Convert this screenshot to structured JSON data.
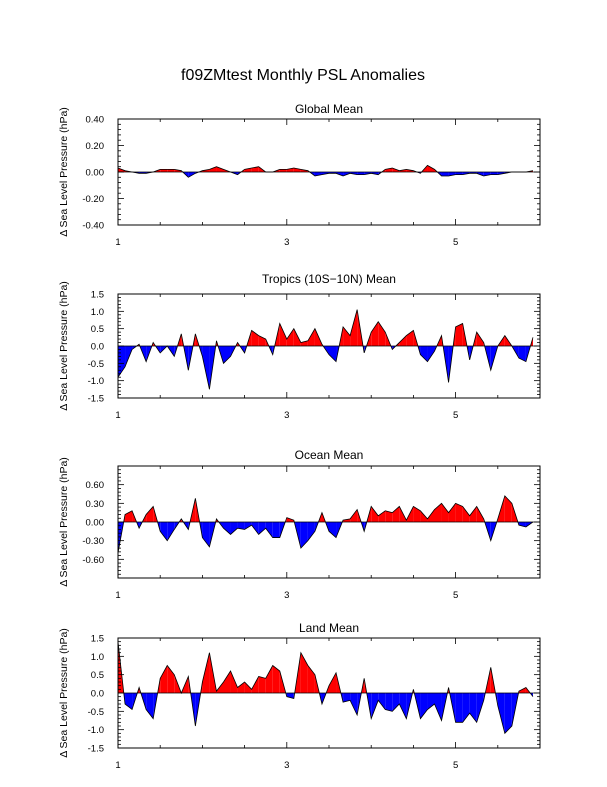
{
  "figure": {
    "title": "f09ZMtest Monthly PSL Anomalies",
    "ylabel": "Δ Sea Level Pressure (hPa)",
    "colors": {
      "positive": "#ff0000",
      "negative": "#0000ff",
      "axis": "#000000",
      "background": "#ffffff"
    }
  },
  "chart_data": [
    {
      "type": "area",
      "title": "Global Mean",
      "ylabel": "Δ Sea Level Pressure (hPa)",
      "xlim": [
        1,
        6
      ],
      "ylim": [
        -0.4,
        0.4
      ],
      "xticks": [
        1,
        3,
        5
      ],
      "yticks": [
        -0.4,
        -0.2,
        0.0,
        0.2,
        0.4
      ],
      "ytick_labels": [
        "-0.40",
        "-0.20",
        "0.00",
        "0.20",
        "0.40"
      ],
      "x_start": 1,
      "x_step": 0.083333,
      "values": [
        0.03,
        0.01,
        0.0,
        -0.01,
        -0.01,
        0.0,
        0.02,
        0.02,
        0.02,
        0.01,
        -0.04,
        -0.01,
        0.01,
        0.02,
        0.04,
        0.02,
        0.0,
        -0.02,
        0.02,
        0.03,
        0.04,
        0.0,
        0.0,
        0.02,
        0.02,
        0.03,
        0.02,
        0.01,
        -0.03,
        -0.02,
        -0.01,
        -0.01,
        -0.03,
        -0.01,
        -0.02,
        -0.02,
        -0.01,
        -0.02,
        0.02,
        0.03,
        0.01,
        0.02,
        0.01,
        -0.01,
        0.05,
        0.02,
        -0.03,
        -0.03,
        -0.02,
        -0.02,
        -0.01,
        -0.01,
        -0.03,
        -0.02,
        -0.02,
        -0.01,
        0.0,
        0.0,
        0.0,
        0.01
      ]
    },
    {
      "type": "area",
      "title": "Tropics (10S−10N) Mean",
      "ylabel": "Δ Sea Level Pressure (hPa)",
      "xlim": [
        1,
        6
      ],
      "ylim": [
        -1.5,
        1.5
      ],
      "xticks": [
        1,
        3,
        5
      ],
      "yticks": [
        -1.5,
        -1.0,
        -0.5,
        0.0,
        0.5,
        1.0,
        1.5
      ],
      "ytick_labels": [
        "-1.5",
        "-1.0",
        "-0.5",
        "0.0",
        "0.5",
        "1.0",
        "1.5"
      ],
      "x_start": 1,
      "x_step": 0.083333,
      "values": [
        -0.9,
        -0.6,
        -0.1,
        0.05,
        -0.45,
        0.1,
        -0.2,
        0.0,
        -0.3,
        0.35,
        -0.7,
        0.35,
        -0.3,
        -1.25,
        0.15,
        -0.5,
        -0.3,
        0.1,
        -0.2,
        0.45,
        0.3,
        0.2,
        -0.25,
        0.65,
        0.2,
        0.5,
        0.1,
        0.15,
        0.5,
        0.05,
        -0.25,
        -0.45,
        0.55,
        0.3,
        1.05,
        -0.2,
        0.4,
        0.7,
        0.4,
        -0.1,
        0.1,
        0.3,
        0.45,
        -0.25,
        -0.45,
        -0.15,
        0.3,
        -1.05,
        0.55,
        0.65,
        -0.4,
        0.4,
        0.1,
        -0.7,
        0.0,
        0.3,
        0.0,
        -0.35,
        -0.45,
        0.25
      ]
    },
    {
      "type": "area",
      "title": "Ocean Mean",
      "ylabel": "Δ Sea Level Pressure (hPa)",
      "xlim": [
        1,
        6
      ],
      "ylim": [
        -0.9,
        0.9
      ],
      "xticks": [
        1,
        3,
        5
      ],
      "yticks": [
        -0.6,
        -0.3,
        0.0,
        0.3,
        0.6
      ],
      "ytick_labels": [
        "-0.60",
        "-0.30",
        "0.00",
        "0.30",
        "0.60"
      ],
      "x_start": 1,
      "x_step": 0.083333,
      "values": [
        -0.5,
        0.12,
        0.18,
        -0.1,
        0.12,
        0.25,
        -0.15,
        -0.3,
        -0.12,
        0.05,
        -0.12,
        0.38,
        -0.25,
        -0.4,
        0.05,
        -0.1,
        -0.2,
        -0.1,
        -0.12,
        -0.05,
        -0.2,
        -0.1,
        -0.25,
        -0.25,
        0.07,
        0.03,
        -0.42,
        -0.3,
        -0.15,
        0.15,
        -0.15,
        -0.25,
        0.03,
        0.05,
        0.2,
        -0.15,
        0.25,
        0.1,
        0.18,
        0.15,
        0.25,
        0.03,
        0.25,
        0.18,
        0.05,
        0.2,
        0.3,
        0.15,
        0.3,
        0.25,
        0.1,
        0.25,
        0.05,
        -0.3,
        0.05,
        0.42,
        0.3,
        -0.05,
        -0.08,
        0.0
      ]
    },
    {
      "type": "area",
      "title": "Land Mean",
      "ylabel": "Δ Sea Level Pressure (hPa)",
      "xlim": [
        1,
        6
      ],
      "ylim": [
        -1.5,
        1.5
      ],
      "xticks": [
        1,
        3,
        5
      ],
      "yticks": [
        -1.5,
        -1.0,
        -0.5,
        0.0,
        0.5,
        1.0,
        1.5
      ],
      "ytick_labels": [
        "-1.5",
        "-1.0",
        "-0.5",
        "0.0",
        "0.5",
        "1.0",
        "1.5"
      ],
      "x_start": 1,
      "x_step": 0.083333,
      "values": [
        1.4,
        -0.3,
        -0.45,
        0.15,
        -0.45,
        -0.7,
        0.4,
        0.75,
        0.5,
        0.0,
        0.45,
        -0.9,
        0.3,
        1.1,
        0.05,
        0.3,
        0.6,
        0.15,
        0.3,
        0.1,
        0.45,
        0.4,
        0.75,
        0.6,
        -0.1,
        -0.15,
        1.1,
        0.75,
        0.5,
        -0.3,
        0.2,
        0.55,
        -0.25,
        -0.2,
        -0.6,
        0.4,
        -0.7,
        -0.2,
        -0.45,
        -0.5,
        -0.3,
        -0.7,
        0.1,
        -0.7,
        -0.45,
        -0.3,
        -0.75,
        0.15,
        -0.8,
        -0.8,
        -0.55,
        -0.8,
        -0.2,
        0.7,
        -0.35,
        -1.1,
        -0.9,
        0.05,
        0.15,
        -0.1
      ]
    }
  ]
}
